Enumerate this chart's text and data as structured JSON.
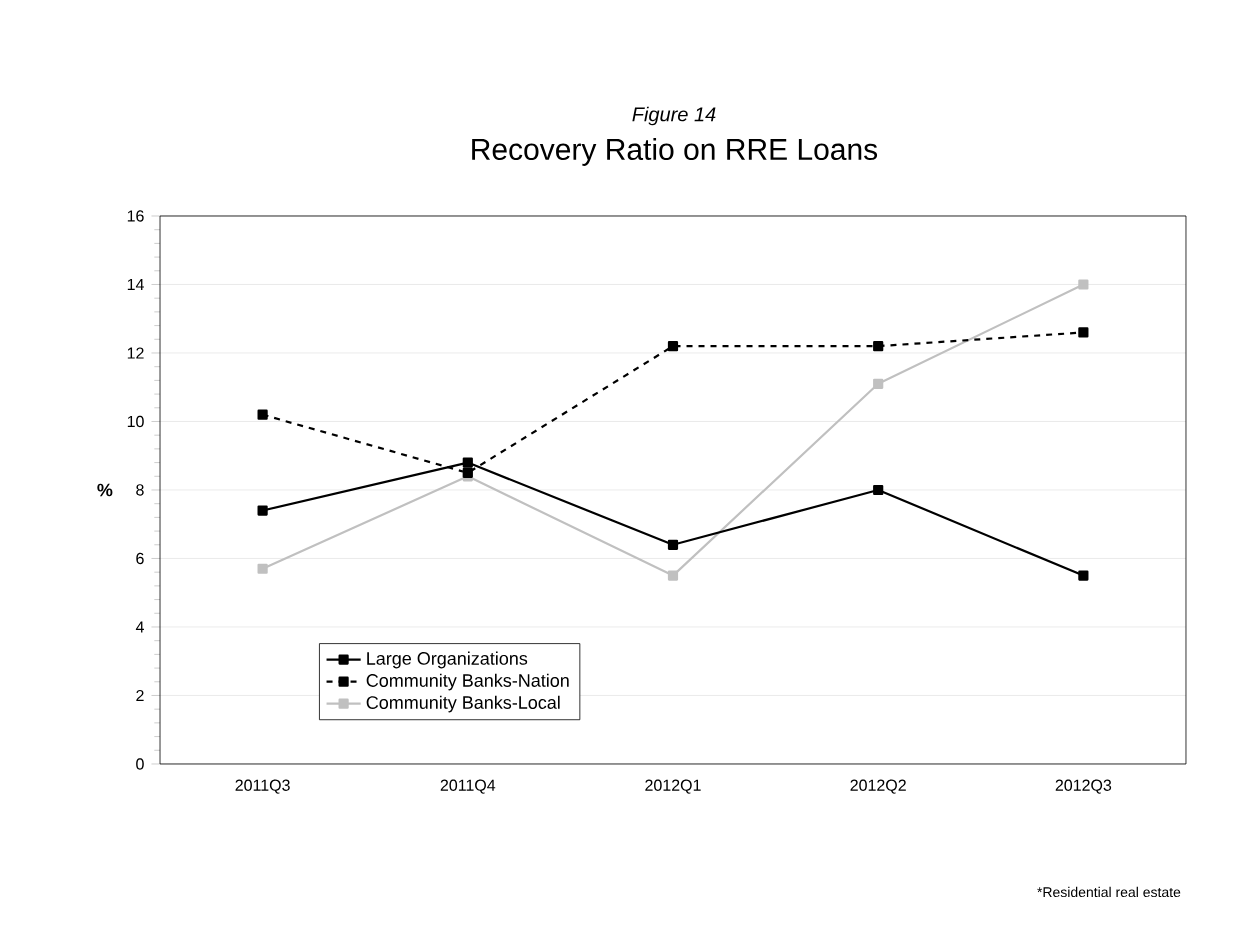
{
  "chart_data": {
    "type": "line",
    "subtitle": "Figure 14",
    "title": "Recovery Ratio on RRE Loans",
    "ylabel": "%",
    "categories": [
      "2011Q3",
      "2011Q4",
      "2012Q1",
      "2012Q2",
      "2012Q3"
    ],
    "series": [
      {
        "name": "Large Organizations",
        "color": "#000000",
        "line_style": "solid",
        "values": [
          7.4,
          8.8,
          6.4,
          8.0,
          5.5
        ]
      },
      {
        "name": "Community Banks-Nation",
        "color": "#000000",
        "line_style": "dashed",
        "values": [
          10.2,
          8.5,
          12.2,
          12.2,
          12.6
        ]
      },
      {
        "name": "Community Banks-Local",
        "color": "#c0c0c0",
        "line_style": "solid",
        "values": [
          5.7,
          8.4,
          5.5,
          11.1,
          14.0
        ]
      }
    ],
    "ylim": [
      0,
      16
    ],
    "yticks": [
      0,
      2,
      4,
      6,
      8,
      10,
      12,
      14,
      16
    ],
    "grid": "y",
    "marker": "square",
    "legend": "bottom left",
    "annotations": [
      "*Residential real estate"
    ]
  }
}
